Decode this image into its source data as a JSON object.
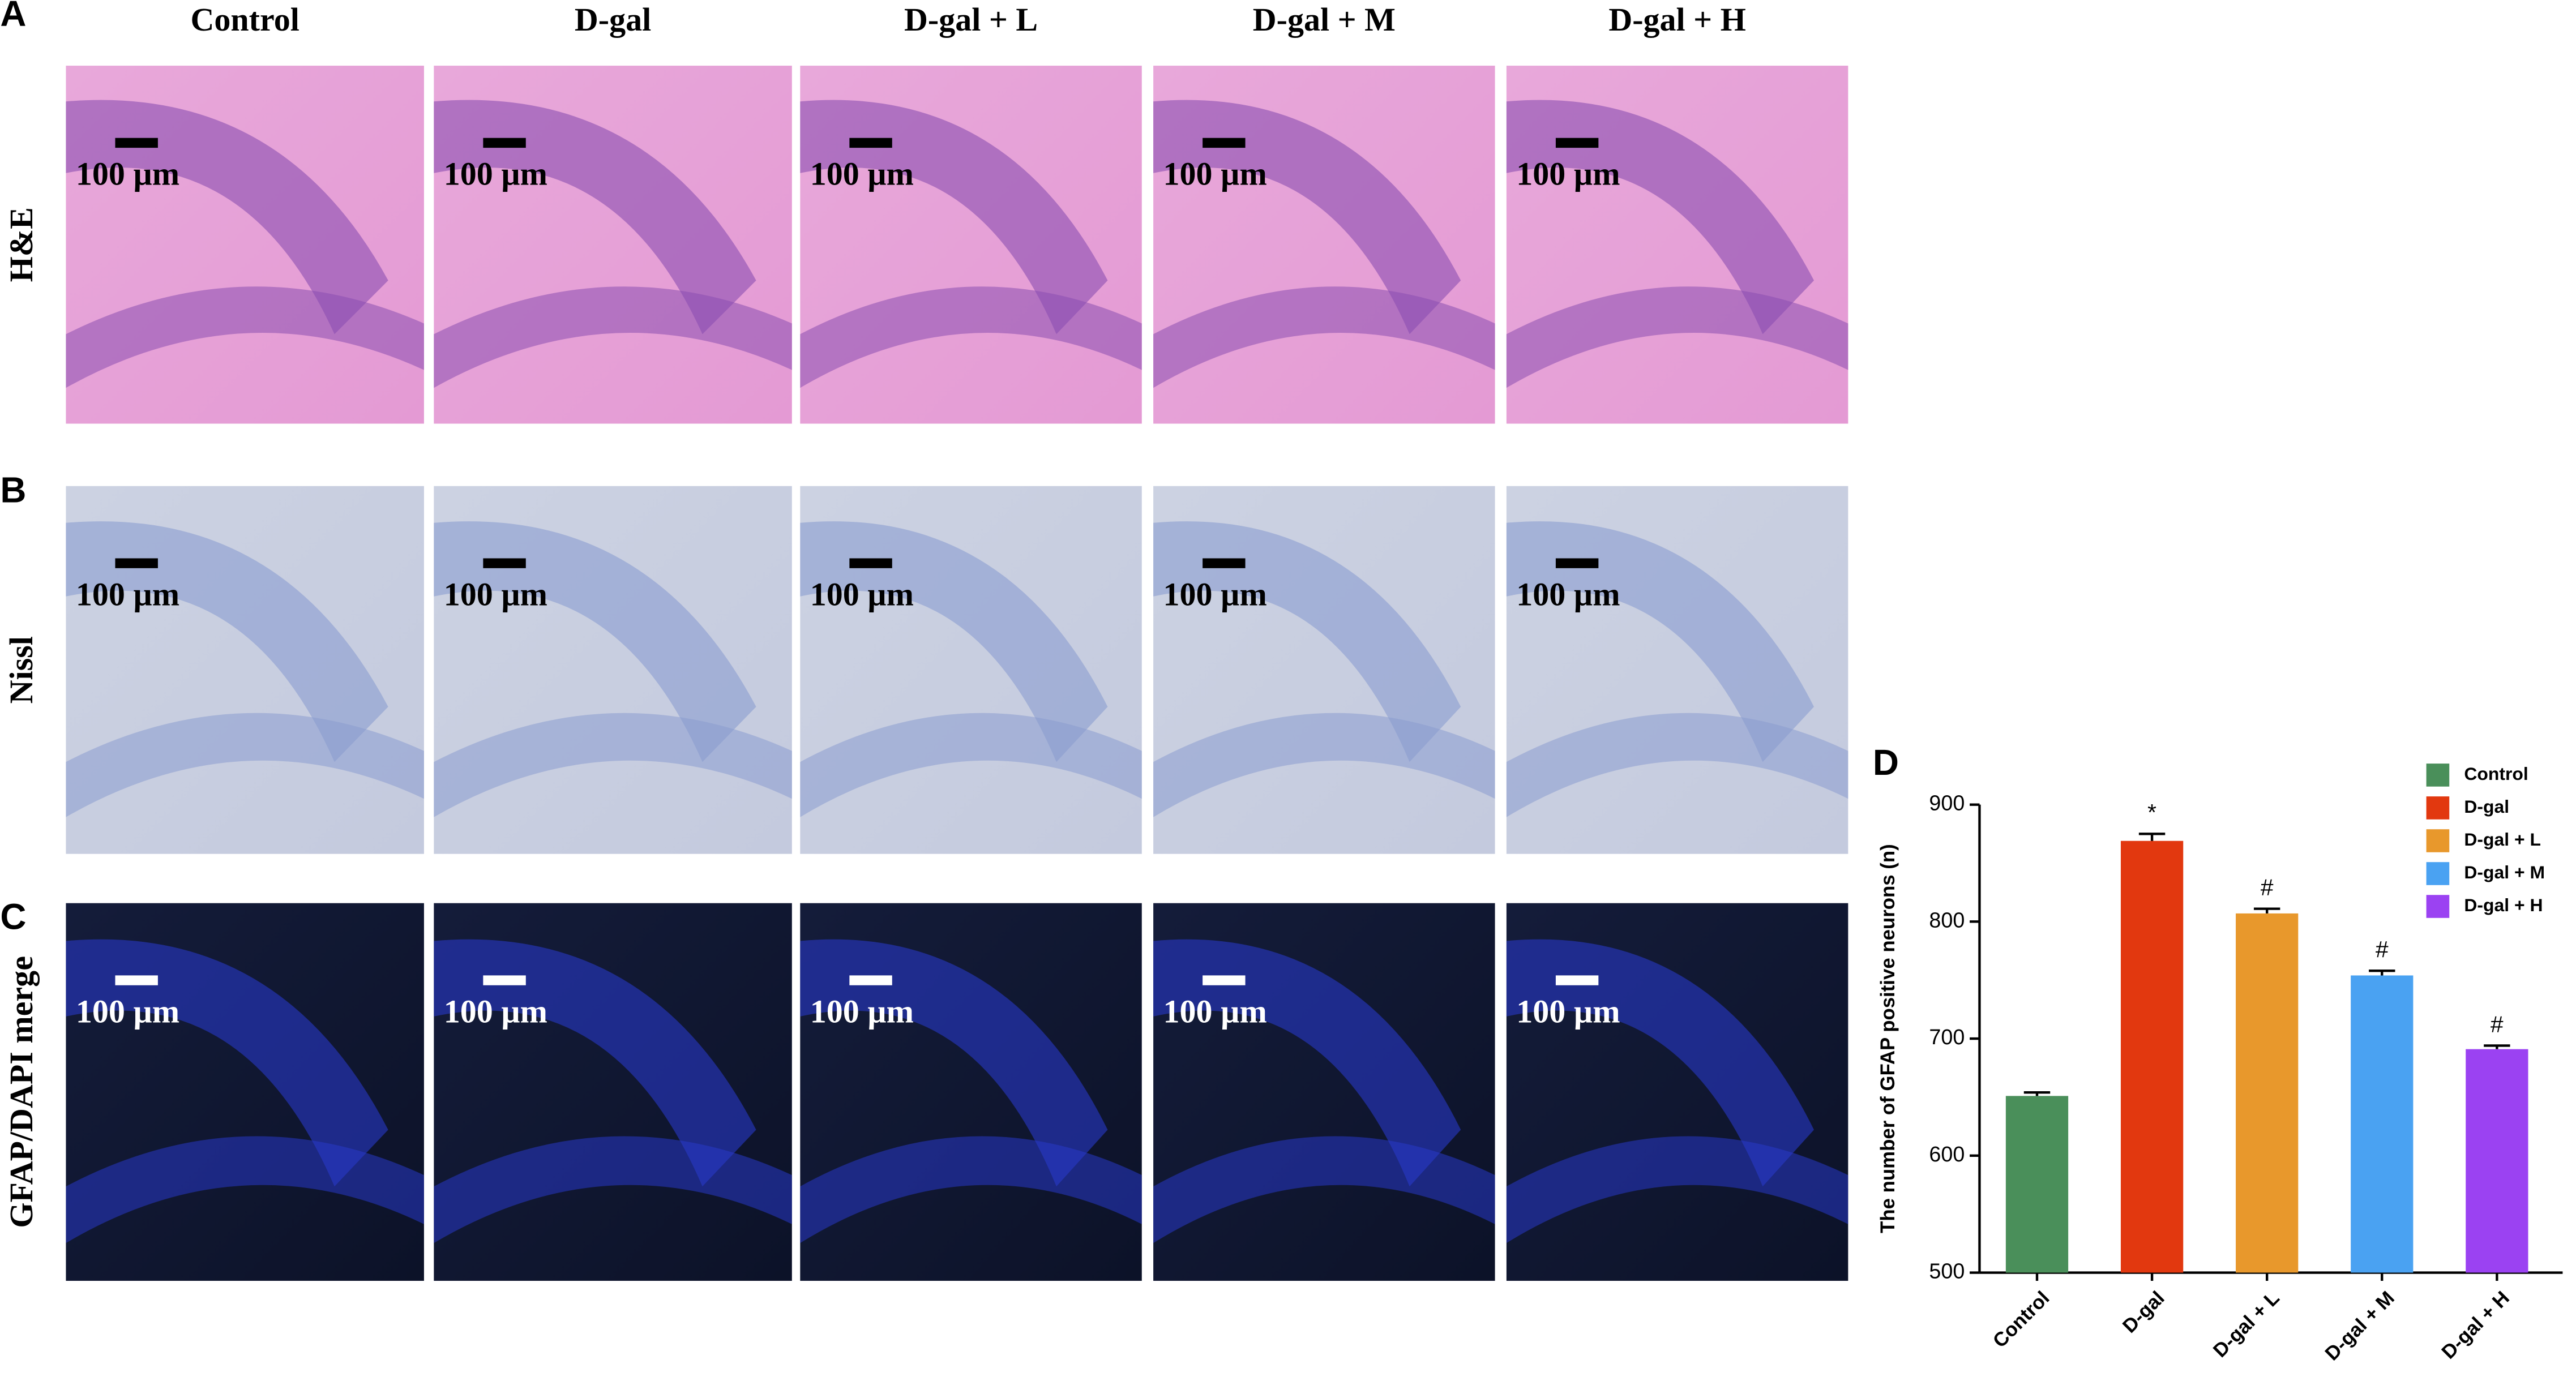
{
  "panel_labels": [
    "A",
    "B",
    "C",
    "D"
  ],
  "columns": [
    "Control",
    "D-gal",
    "D-gal + L",
    "D-gal + M",
    "D-gal + H"
  ],
  "rows": [
    "H&E",
    "Nissl",
    "GFAP/DAPI merge"
  ],
  "scale_bar": "100 µm",
  "chart_data": {
    "type": "bar",
    "y_label": "The number of GFAP positive neurons (n)",
    "categories": [
      "Control",
      "D-gal",
      "D-gal + L",
      "D-gal + M",
      "D-gal + H"
    ],
    "values": [
      651,
      869,
      807,
      754,
      691
    ],
    "errors": [
      3,
      6,
      4,
      4,
      3
    ],
    "significance": [
      null,
      "*",
      "#",
      "#",
      "#"
    ],
    "colors": [
      "#4a8f5a",
      "#e2380f",
      "#e8982c",
      "#4aa2f2",
      "#9b42f2"
    ],
    "ylim": [
      500,
      900
    ],
    "yticks": [
      500,
      600,
      700,
      800,
      900
    ],
    "legend": "upper right"
  }
}
